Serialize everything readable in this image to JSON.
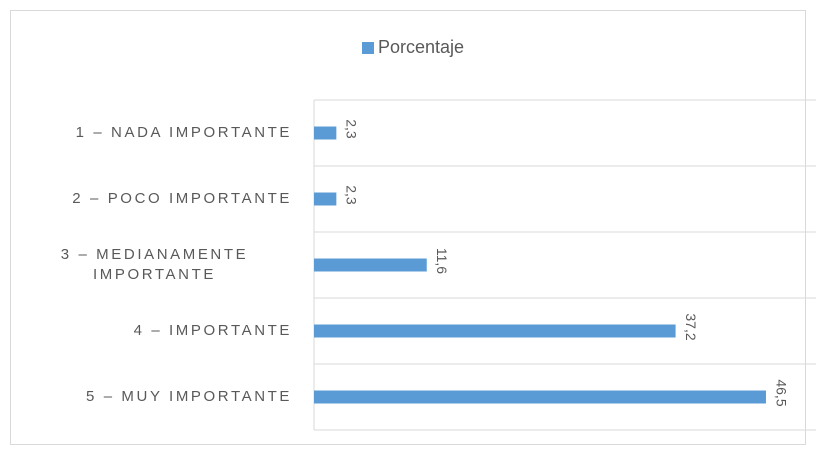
{
  "chart_data": {
    "type": "hbar",
    "categories": [
      "1 – NADA IMPORTANTE",
      "2 – POCO IMPORTANTE",
      "3 – MEDIANAMENTE IMPORTANTE",
      "4 – IMPORTANTE",
      "5 – MUY IMPORTANTE"
    ],
    "series": [
      {
        "name": "Porcentaje",
        "color": "#5b9bd5",
        "values": [
          2.3,
          2.3,
          11.6,
          37.2,
          46.5
        ],
        "value_labels": [
          "2,3",
          "2,3",
          "11,6",
          "37,2",
          "46,5"
        ]
      }
    ],
    "xlim": [
      0,
      50
    ],
    "grid": true,
    "legend": "top"
  }
}
